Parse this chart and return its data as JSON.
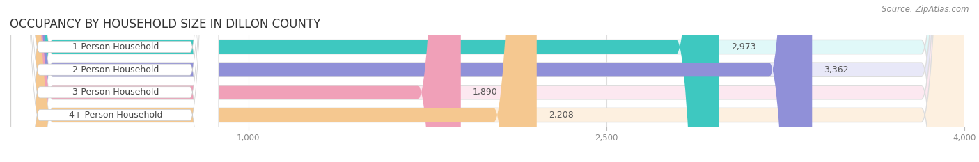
{
  "title": "OCCUPANCY BY HOUSEHOLD SIZE IN DILLON COUNTY",
  "source": "Source: ZipAtlas.com",
  "categories": [
    "1-Person Household",
    "2-Person Household",
    "3-Person Household",
    "4+ Person Household"
  ],
  "values": [
    2973,
    3362,
    1890,
    2208
  ],
  "bar_colors": [
    "#3ec8c0",
    "#9090d8",
    "#f0a0b8",
    "#f5c890"
  ],
  "bg_colors": [
    "#e0f8f8",
    "#e8e8f8",
    "#fce8f0",
    "#fdf0e0"
  ],
  "xlim_min": 0,
  "xlim_max": 4000,
  "xticks": [
    1000,
    2500,
    4000
  ],
  "bar_height": 0.62,
  "label_fontsize": 9,
  "value_fontsize": 9,
  "title_fontsize": 12,
  "source_fontsize": 8.5,
  "bg_color": "#ffffff"
}
